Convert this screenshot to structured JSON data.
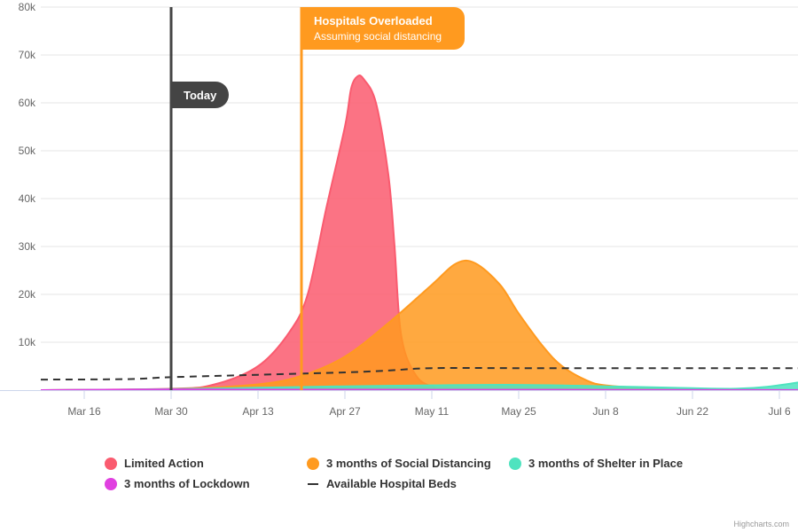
{
  "chart_data": {
    "type": "area",
    "x_axis": {
      "type": "date",
      "tick_labels": [
        "Mar 16",
        "Mar 30",
        "Apr 13",
        "Apr 27",
        "May 11",
        "May 25",
        "Jun 8",
        "Jun 22",
        "Jul 6"
      ],
      "tick_dates": [
        "2020-03-16",
        "2020-03-30",
        "2020-04-13",
        "2020-04-27",
        "2020-05-11",
        "2020-05-25",
        "2020-06-08",
        "2020-06-22",
        "2020-07-06"
      ],
      "range": [
        "2020-03-09",
        "2020-07-09"
      ]
    },
    "y_axis": {
      "range": [
        0,
        80000
      ],
      "tick_values": [
        0,
        10000,
        20000,
        30000,
        40000,
        50000,
        60000,
        70000,
        80000
      ],
      "tick_labels": [
        "",
        "10k",
        "20k",
        "30k",
        "40k",
        "50k",
        "60k",
        "70k",
        "80k"
      ],
      "grid": true
    },
    "series": [
      {
        "name": "Limited Action",
        "color": "#fa5b6f",
        "points": [
          [
            "2020-03-09",
            0
          ],
          [
            "2020-03-30",
            300
          ],
          [
            "2020-04-06",
            1200
          ],
          [
            "2020-04-13",
            5000
          ],
          [
            "2020-04-18",
            12000
          ],
          [
            "2020-04-21",
            20000
          ],
          [
            "2020-04-24",
            38000
          ],
          [
            "2020-04-27",
            55000
          ],
          [
            "2020-04-28",
            63000
          ],
          [
            "2020-04-29",
            65500
          ],
          [
            "2020-04-30",
            65000
          ],
          [
            "2020-05-02",
            60000
          ],
          [
            "2020-05-04",
            45000
          ],
          [
            "2020-05-05",
            30000
          ],
          [
            "2020-05-06",
            12000
          ],
          [
            "2020-05-08",
            4000
          ],
          [
            "2020-05-11",
            800
          ],
          [
            "2020-05-18",
            200
          ],
          [
            "2020-07-09",
            0
          ]
        ]
      },
      {
        "name": "3 months of Social Distancing",
        "color": "#ff9a1f",
        "points": [
          [
            "2020-03-09",
            0
          ],
          [
            "2020-03-30",
            200
          ],
          [
            "2020-04-13",
            1200
          ],
          [
            "2020-04-20",
            3000
          ],
          [
            "2020-04-27",
            7000
          ],
          [
            "2020-05-04",
            14000
          ],
          [
            "2020-05-11",
            22000
          ],
          [
            "2020-05-15",
            26500
          ],
          [
            "2020-05-18",
            26500
          ],
          [
            "2020-05-22",
            22000
          ],
          [
            "2020-05-25",
            16000
          ],
          [
            "2020-05-29",
            9000
          ],
          [
            "2020-06-01",
            5000
          ],
          [
            "2020-06-05",
            2000
          ],
          [
            "2020-06-08",
            1000
          ],
          [
            "2020-06-15",
            400
          ],
          [
            "2020-06-22",
            150
          ],
          [
            "2020-07-09",
            0
          ]
        ]
      },
      {
        "name": "3 months of Shelter in Place",
        "color": "#4fe3bf",
        "points": [
          [
            "2020-03-09",
            0
          ],
          [
            "2020-03-30",
            200
          ],
          [
            "2020-04-13",
            500
          ],
          [
            "2020-04-27",
            800
          ],
          [
            "2020-05-11",
            1000
          ],
          [
            "2020-05-25",
            1100
          ],
          [
            "2020-06-08",
            800
          ],
          [
            "2020-06-22",
            400
          ],
          [
            "2020-06-29",
            300
          ],
          [
            "2020-07-04",
            700
          ],
          [
            "2020-07-09",
            1600
          ]
        ]
      },
      {
        "name": "3 months of Lockdown",
        "color": "#e040e0",
        "points": [
          [
            "2020-03-09",
            0
          ],
          [
            "2020-03-30",
            150
          ],
          [
            "2020-04-13",
            100
          ],
          [
            "2020-05-11",
            80
          ],
          [
            "2020-06-08",
            50
          ],
          [
            "2020-07-09",
            20
          ]
        ]
      },
      {
        "name": "Available Hospital Beds",
        "color": "#333333",
        "style": "dashed-line",
        "points": [
          [
            "2020-03-09",
            2200
          ],
          [
            "2020-03-23",
            2300
          ],
          [
            "2020-03-30",
            2700
          ],
          [
            "2020-04-13",
            3200
          ],
          [
            "2020-04-27",
            3700
          ],
          [
            "2020-05-04",
            4100
          ],
          [
            "2020-05-11",
            4600
          ],
          [
            "2020-05-25",
            4600
          ],
          [
            "2020-06-08",
            4600
          ],
          [
            "2020-07-09",
            4600
          ]
        ]
      }
    ],
    "plot_lines": [
      {
        "date": "2020-03-30",
        "color": "#444444",
        "label": "Today"
      },
      {
        "date": "2020-04-20",
        "color": "#ff9a1f",
        "label": "Hospitals Overloaded",
        "sublabel": "Assuming social distancing"
      }
    ],
    "legend": {
      "placement": "bottom-center",
      "items": [
        {
          "label": "Limited Action",
          "color": "#fa5b6f",
          "symbol": "circle"
        },
        {
          "label": "3 months of Social Distancing",
          "color": "#ff9a1f",
          "symbol": "circle"
        },
        {
          "label": "3 months of Shelter in Place",
          "color": "#4fe3bf",
          "symbol": "circle"
        },
        {
          "label": "3 months of Lockdown",
          "color": "#e040e0",
          "symbol": "circle"
        },
        {
          "label": "Available Hospital Beds",
          "color": "#333333",
          "symbol": "dash"
        }
      ]
    },
    "credits": "Highcharts.com"
  }
}
